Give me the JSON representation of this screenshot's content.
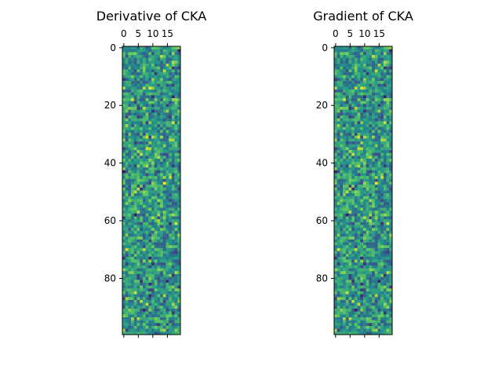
{
  "figure": {
    "background": "#ffffff"
  },
  "chart_data": [
    {
      "type": "heatmap",
      "title": "Derivative of CKA",
      "xlabel": "",
      "ylabel": "",
      "n_cols": 20,
      "n_rows": 100,
      "xlim": [
        -0.5,
        19.5
      ],
      "ylim": [
        99.5,
        -0.5
      ],
      "x_ticks": [
        0,
        5,
        10,
        15
      ],
      "x_tick_labels": [
        "0",
        "5",
        "10",
        "15"
      ],
      "x_axis_position": "top",
      "y_ticks": [
        0,
        20,
        40,
        60,
        80
      ],
      "y_tick_labels": [
        "0",
        "20",
        "40",
        "60",
        "80"
      ],
      "colormap": "viridis",
      "seed": 1337,
      "note_values": "random matrix, values not labeled"
    },
    {
      "type": "heatmap",
      "title": "Gradient of CKA",
      "xlabel": "",
      "ylabel": "",
      "n_cols": 20,
      "n_rows": 100,
      "xlim": [
        -0.5,
        19.5
      ],
      "ylim": [
        99.5,
        -0.5
      ],
      "x_ticks": [
        0,
        5,
        10,
        15
      ],
      "x_tick_labels": [
        "0",
        "5",
        "10",
        "15"
      ],
      "x_axis_position": "top",
      "y_ticks": [
        0,
        20,
        40,
        60,
        80
      ],
      "y_tick_labels": [
        "0",
        "20",
        "40",
        "60",
        "80"
      ],
      "colormap": "viridis",
      "seed": 1337,
      "note_values": "identical to left panel"
    }
  ],
  "colormap_stops": [
    "#440154",
    "#3b528b",
    "#21918c",
    "#5ec962",
    "#fde725"
  ]
}
